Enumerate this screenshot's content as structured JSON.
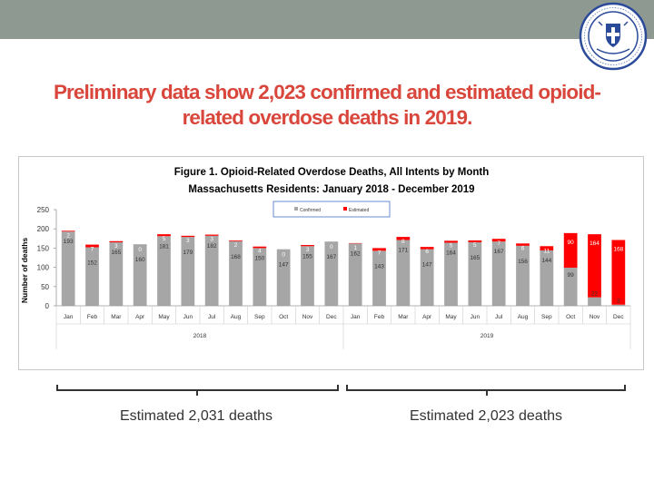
{
  "slide_title_line1": "Preliminary data show 2,023 confirmed and estimated opioid-",
  "slide_title_line2": "related overdose deaths in 2019.",
  "logo_text": "Commonwealth of Massachusetts Department of Public Health",
  "colors": {
    "topbar": "#8e9a91",
    "title": "#d9463c",
    "confirmed": "#a6a6a6",
    "estimated": "#ff0000"
  },
  "summary": {
    "left": "Estimated 2,031 deaths",
    "right": "Estimated 2,023 deaths"
  },
  "chart_data": {
    "type": "bar",
    "stacked": true,
    "title_line1": "Figure 1. Opioid-Related Overdose Deaths, All Intents by Month",
    "title_line2": "Massachusetts Residents: January 2018 - December 2019",
    "ylabel": "Number of deaths",
    "ylim": [
      0,
      250
    ],
    "yticks": [
      0,
      50,
      100,
      150,
      200,
      250
    ],
    "legend": {
      "position": "top-right",
      "labels": [
        "Confirmed",
        "Estimated"
      ]
    },
    "categories": [
      "Jan",
      "Feb",
      "Mar",
      "Apr",
      "May",
      "Jun",
      "Jul",
      "Aug",
      "Sep",
      "Oct",
      "Nov",
      "Dec",
      "Jan",
      "Feb",
      "Mar",
      "Apr",
      "May",
      "Jun",
      "Jul",
      "Aug",
      "Sep",
      "Oct",
      "Nov",
      "Dec"
    ],
    "year_groups": [
      {
        "label": "2018",
        "months": 12
      },
      {
        "label": "2019",
        "months": 12
      }
    ],
    "series": [
      {
        "name": "Confirmed",
        "values": [
          193,
          152,
          165,
          160,
          181,
          179,
          182,
          168,
          150,
          147,
          155,
          167,
          162,
          143,
          171,
          147,
          164,
          165,
          167,
          156,
          144,
          99,
          22,
          3
        ]
      },
      {
        "name": "Estimated",
        "values": [
          2,
          7,
          3,
          0,
          5,
          3,
          3,
          2,
          4,
          0,
          3,
          0,
          1,
          7,
          8,
          6,
          5,
          5,
          7,
          6,
          11,
          90,
          164,
          168
        ]
      }
    ]
  }
}
